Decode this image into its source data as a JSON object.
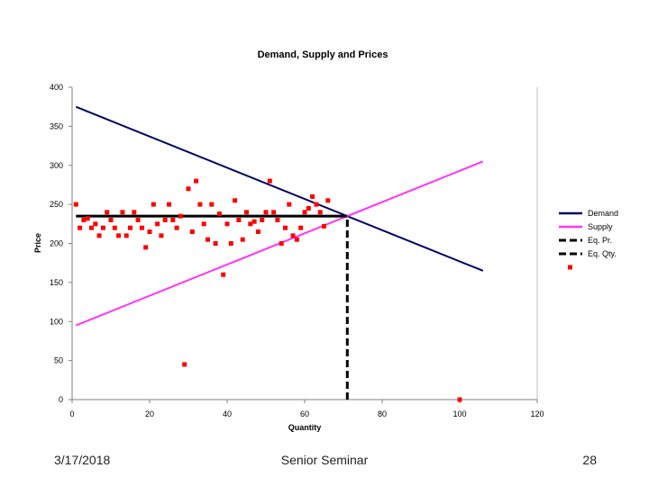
{
  "footer": {
    "date": "3/17/2018",
    "title": "Senior Seminar",
    "page": "28"
  },
  "chart_data": {
    "type": "scatter",
    "title": "Demand, Supply and Prices",
    "xlabel": "Quantity",
    "ylabel": "Price",
    "xlim": [
      0,
      120
    ],
    "ylim": [
      0,
      400
    ],
    "xticks": [
      0,
      20,
      40,
      60,
      80,
      100,
      120
    ],
    "yticks": [
      0,
      50,
      100,
      150,
      200,
      250,
      300,
      350,
      400
    ],
    "grid": false,
    "legend_position": "right",
    "colors": {
      "demand": "#000066",
      "supply": "#ff33ff",
      "eq": "#000000",
      "points": "#ff0000"
    },
    "series": [
      {
        "name": "Demand",
        "kind": "line",
        "style": "solid",
        "x": [
          1,
          106
        ],
        "y": [
          375,
          165
        ]
      },
      {
        "name": "Supply",
        "kind": "line",
        "style": "solid",
        "x": [
          1,
          106
        ],
        "y": [
          95,
          305
        ]
      },
      {
        "name": "Eq. Pr.",
        "kind": "line",
        "style": "dashed",
        "x": [
          1,
          71
        ],
        "y": [
          235,
          235
        ]
      },
      {
        "name": "Eq. Qty.",
        "kind": "line",
        "style": "dashed",
        "x": [
          71,
          71
        ],
        "y": [
          0,
          235
        ]
      },
      {
        "name": "",
        "kind": "scatter",
        "points": [
          [
            1,
            250
          ],
          [
            2,
            220
          ],
          [
            3,
            230
          ],
          [
            4,
            232
          ],
          [
            5,
            220
          ],
          [
            6,
            225
          ],
          [
            7,
            210
          ],
          [
            8,
            220
          ],
          [
            9,
            240
          ],
          [
            10,
            230
          ],
          [
            11,
            220
          ],
          [
            12,
            210
          ],
          [
            13,
            240
          ],
          [
            14,
            210
          ],
          [
            15,
            220
          ],
          [
            16,
            240
          ],
          [
            17,
            230
          ],
          [
            18,
            220
          ],
          [
            19,
            195
          ],
          [
            20,
            215
          ],
          [
            21,
            250
          ],
          [
            22,
            225
          ],
          [
            23,
            210
          ],
          [
            24,
            230
          ],
          [
            25,
            250
          ],
          [
            26,
            230
          ],
          [
            27,
            220
          ],
          [
            28,
            235
          ],
          [
            29,
            45
          ],
          [
            30,
            270
          ],
          [
            31,
            215
          ],
          [
            32,
            280
          ],
          [
            33,
            250
          ],
          [
            34,
            225
          ],
          [
            35,
            205
          ],
          [
            36,
            250
          ],
          [
            37,
            200
          ],
          [
            38,
            238
          ],
          [
            39,
            160
          ],
          [
            40,
            225
          ],
          [
            41,
            200
          ],
          [
            42,
            255
          ],
          [
            43,
            230
          ],
          [
            44,
            205
          ],
          [
            45,
            240
          ],
          [
            46,
            225
          ],
          [
            47,
            228
          ],
          [
            48,
            215
          ],
          [
            49,
            230
          ],
          [
            50,
            240
          ],
          [
            51,
            280
          ],
          [
            52,
            240
          ],
          [
            53,
            230
          ],
          [
            54,
            200
          ],
          [
            55,
            220
          ],
          [
            56,
            250
          ],
          [
            57,
            210
          ],
          [
            58,
            205
          ],
          [
            59,
            220
          ],
          [
            60,
            240
          ],
          [
            61,
            245
          ],
          [
            62,
            260
          ],
          [
            63,
            250
          ],
          [
            64,
            240
          ],
          [
            65,
            222
          ],
          [
            66,
            255
          ],
          [
            100,
            0
          ]
        ]
      }
    ]
  }
}
